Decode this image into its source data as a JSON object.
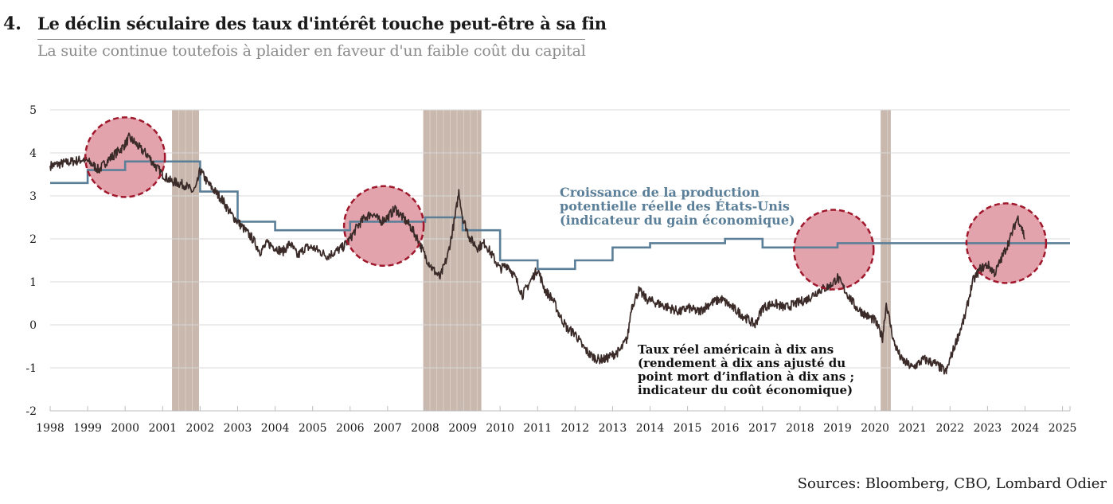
{
  "header": {
    "number": "4.",
    "title": "Le déclin séculaire des taux d'intérêt touche peut-être à sa fin",
    "subtitle": "La suite continue toutefois à plaider en faveur d'un faible coût du capital"
  },
  "footer": {
    "source": "Sources: Bloomberg, CBO, Lombard Odier"
  },
  "colors": {
    "potential_growth": "#5b7f98",
    "real_rate": "#3a2a28",
    "recession": "#c9b8ae",
    "highlight_fill": "#e3a3ad",
    "highlight_stroke": "#a0182c",
    "grid": "#d8d8d8"
  },
  "chart_data": {
    "type": "line",
    "title": "Le déclin séculaire des taux d'intérêt touche peut-être à sa fin",
    "subtitle": "La suite continue toutefois à plaider en faveur d'un faible coût du capital",
    "xlim": [
      1998,
      2025.2
    ],
    "ylim": [
      -2,
      5
    ],
    "x_ticks": [
      "1998",
      "1999",
      "2000",
      "2001",
      "2002",
      "2003",
      "2004",
      "2005",
      "2006",
      "2007",
      "2008",
      "2009",
      "2010",
      "2011",
      "2012",
      "2013",
      "2014",
      "2015",
      "2016",
      "2017",
      "2018",
      "2019",
      "2020",
      "2021",
      "2022",
      "2023",
      "2024",
      "2025"
    ],
    "y_ticks": [
      5,
      4,
      3,
      2,
      1,
      0,
      -1,
      -2
    ],
    "y_tick_labels": [
      "5",
      "4",
      "3",
      "2",
      "1",
      "0",
      "-1",
      "-2"
    ],
    "grid": "horizontal",
    "recessions": [
      [
        2001.25,
        2001.97
      ],
      [
        2007.95,
        2009.5
      ],
      [
        2020.15,
        2020.42
      ]
    ],
    "highlights": [
      {
        "x": 2000.0,
        "y": 3.9
      },
      {
        "x": 2006.9,
        "y": 2.3
      },
      {
        "x": 2018.9,
        "y": 1.75
      },
      {
        "x": 2023.5,
        "y": 1.9
      }
    ],
    "annotations": [
      {
        "series": "potential_growth",
        "lines": [
          "Croissance de la production",
          "potentielle réelle des États-Unis",
          "(indicateur du gain économique)"
        ]
      },
      {
        "series": "real_rate",
        "lines": [
          "Taux réel américain à dix ans",
          "(rendement à dix ans ajusté du",
          "point mort d’inflation à dix ans ;",
          "indicateur du coût économique)"
        ]
      }
    ],
    "series": [
      {
        "name": "Croissance de la production potentielle réelle des États-Unis",
        "key": "potential_growth",
        "step": true,
        "x": [
          1998.0,
          1999.0,
          2000.0,
          2002.0,
          2003.0,
          2004.0,
          2006.0,
          2008.0,
          2009.0,
          2010.0,
          2011.0,
          2012.0,
          2013.0,
          2014.0,
          2016.0,
          2017.0,
          2018.0,
          2019.0,
          2025.2
        ],
        "y": [
          3.3,
          3.6,
          3.8,
          3.1,
          2.4,
          2.2,
          2.4,
          2.5,
          2.2,
          1.5,
          1.3,
          1.5,
          1.8,
          1.9,
          2.0,
          1.8,
          1.8,
          1.9,
          1.9
        ]
      },
      {
        "name": "Taux réel américain à dix ans (rendement à dix ans ajusté du point mort d’inflation à dix ans ; indicateur du coût économique)",
        "key": "real_rate",
        "x": [
          1998.0,
          1998.3,
          1998.6,
          1998.9,
          1999.1,
          1999.3,
          1999.5,
          1999.7,
          1999.9,
          2000.0,
          2000.1,
          2000.25,
          2000.4,
          2000.6,
          2000.8,
          2001.0,
          2001.2,
          2001.4,
          2001.6,
          2001.8,
          2001.9,
          2002.0,
          2002.2,
          2002.4,
          2002.6,
          2002.8,
          2003.0,
          2003.2,
          2003.4,
          2003.6,
          2003.8,
          2004.0,
          2004.2,
          2004.4,
          2004.6,
          2004.8,
          2005.0,
          2005.2,
          2005.4,
          2005.6,
          2005.8,
          2006.0,
          2006.2,
          2006.4,
          2006.6,
          2006.8,
          2007.0,
          2007.2,
          2007.4,
          2007.6,
          2007.8,
          2008.0,
          2008.2,
          2008.4,
          2008.6,
          2008.8,
          2008.9,
          2009.0,
          2009.2,
          2009.4,
          2009.6,
          2009.8,
          2010.0,
          2010.2,
          2010.4,
          2010.6,
          2010.8,
          2011.0,
          2011.2,
          2011.4,
          2011.6,
          2011.8,
          2012.0,
          2012.2,
          2012.4,
          2012.6,
          2012.8,
          2013.0,
          2013.2,
          2013.4,
          2013.5,
          2013.7,
          2013.9,
          2014.2,
          2014.5,
          2014.8,
          2015.0,
          2015.3,
          2015.6,
          2015.9,
          2016.2,
          2016.5,
          2016.8,
          2017.0,
          2017.3,
          2017.6,
          2017.9,
          2018.2,
          2018.5,
          2018.8,
          2019.0,
          2019.2,
          2019.5,
          2019.8,
          2020.0,
          2020.2,
          2020.3,
          2020.5,
          2020.7,
          2021.0,
          2021.3,
          2021.6,
          2021.9,
          2022.0,
          2022.2,
          2022.4,
          2022.6,
          2022.8,
          2023.0,
          2023.2,
          2023.4,
          2023.6,
          2023.8,
          2023.9,
          2024.0
        ],
        "y": [
          3.7,
          3.75,
          3.8,
          3.85,
          3.75,
          3.6,
          3.8,
          3.95,
          4.1,
          4.2,
          4.35,
          4.25,
          4.1,
          3.95,
          3.7,
          3.5,
          3.35,
          3.3,
          3.25,
          3.1,
          3.2,
          3.6,
          3.3,
          3.1,
          2.9,
          2.6,
          2.4,
          2.2,
          2.0,
          1.7,
          1.9,
          1.8,
          1.7,
          1.9,
          1.6,
          1.8,
          1.8,
          1.7,
          1.6,
          1.7,
          1.8,
          2.0,
          2.3,
          2.5,
          2.6,
          2.4,
          2.5,
          2.7,
          2.5,
          2.3,
          2.0,
          1.6,
          1.3,
          1.1,
          1.6,
          2.5,
          3.1,
          2.5,
          2.0,
          1.8,
          1.9,
          1.6,
          1.3,
          1.4,
          1.1,
          0.7,
          1.0,
          1.3,
          0.8,
          0.6,
          0.2,
          -0.1,
          -0.2,
          -0.5,
          -0.7,
          -0.8,
          -0.8,
          -0.7,
          -0.6,
          -0.3,
          0.4,
          0.8,
          0.6,
          0.5,
          0.4,
          0.3,
          0.4,
          0.3,
          0.5,
          0.6,
          0.4,
          0.2,
          0.0,
          0.4,
          0.5,
          0.4,
          0.5,
          0.6,
          0.8,
          0.9,
          1.1,
          0.8,
          0.4,
          0.2,
          0.1,
          -0.3,
          0.5,
          -0.4,
          -0.8,
          -1.0,
          -0.8,
          -0.9,
          -1.1,
          -0.8,
          -0.3,
          0.2,
          1.0,
          1.3,
          1.4,
          1.2,
          1.6,
          2.0,
          2.5,
          2.3,
          2.0
        ]
      }
    ]
  }
}
